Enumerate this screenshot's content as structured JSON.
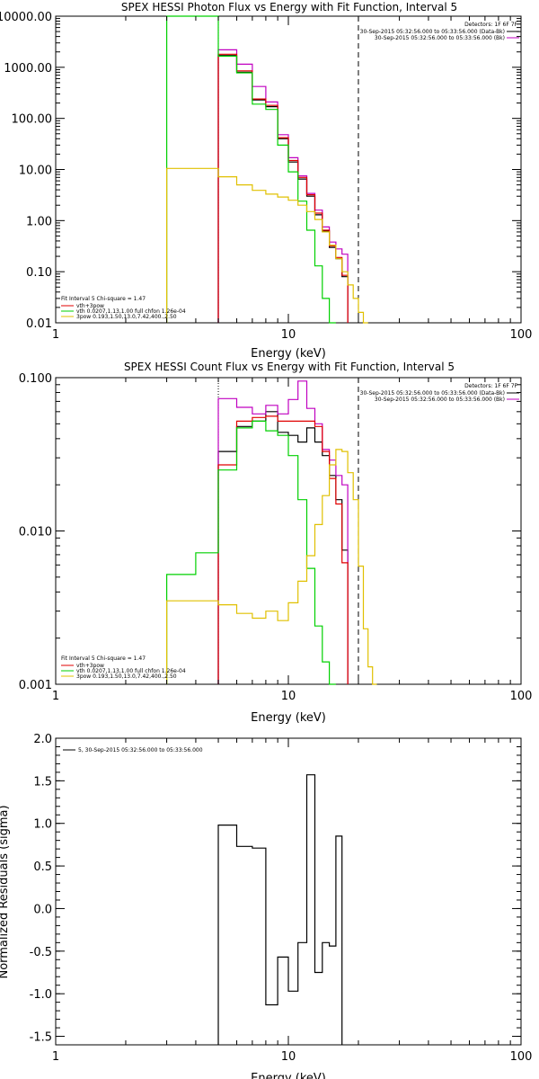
{
  "colors": {
    "black": "#000000",
    "red": "#e00000",
    "green": "#00d000",
    "purple": "#c000c0",
    "yellow": "#e0c000"
  },
  "chart_data": [
    {
      "type": "line",
      "step": true,
      "title": "SPEX HESSI Photon Flux vs Energy with Fit Function, Interval 5",
      "xlabel": "Energy (keV)",
      "ylabel": "",
      "xscale": "log",
      "yscale": "log",
      "xlim": [
        1,
        100
      ],
      "ylim": [
        0.01,
        10000
      ],
      "xticks": [
        {
          "v": 1,
          "label": "1"
        },
        {
          "v": 10,
          "label": "10"
        },
        {
          "v": 100,
          "label": "100"
        }
      ],
      "yticks": [
        {
          "v": 10000,
          "label": "10000.00"
        },
        {
          "v": 1000,
          "label": "1000.00"
        },
        {
          "v": 100,
          "label": "100.00"
        },
        {
          "v": 10,
          "label": "10.00"
        },
        {
          "v": 1,
          "label": "1.00"
        },
        {
          "v": 0.1,
          "label": "0.10"
        },
        {
          "v": 0.01,
          "label": "0.01"
        }
      ],
      "ytick_clip": [
        10000
      ],
      "info_text": [
        "Detectors: 1F 6F 7F",
        "30-Sep-2015 05:32:56.000 to 05:33:56.000 (Data-Bk)",
        "30-Sep-2015 05:32:56.000 to 05:33:56.000 (Bk)"
      ],
      "fit_text": [
        "Fit Interval 5   Chi-square = 1.47",
        "vth+3pow",
        "vth 0.0207,1.13,1.00  full chfon 1.26e-04",
        "3pow 0.193,1.50,13.0,7.42,400.,2.50"
      ],
      "vlines": [
        {
          "x": 5,
          "style": "dotted"
        },
        {
          "x": 20,
          "style": "dashed"
        }
      ],
      "edges": [
        3,
        4,
        5,
        6,
        7,
        8,
        9,
        10,
        11,
        12,
        13,
        14,
        15,
        16,
        17,
        18,
        19,
        20,
        21,
        22,
        23,
        24,
        25,
        26
      ],
      "series": [
        {
          "color_key": "black",
          "start": 2,
          "values": [
            1700,
            800,
            230,
            170,
            40,
            14,
            6.5,
            3.0,
            1.3,
            0.62,
            0.3,
            0.18,
            0.08
          ]
        },
        {
          "color_key": "purple",
          "start": 2,
          "values": [
            2200,
            1150,
            420,
            210,
            48,
            17,
            7.5,
            3.4,
            1.6,
            0.75,
            0.38,
            0.28,
            0.22
          ]
        },
        {
          "color_key": "red",
          "start": 2,
          "values": [
            1800,
            850,
            240,
            180,
            42,
            15,
            7.0,
            3.2,
            1.4,
            0.65,
            0.32,
            0.19,
            0.085
          ]
        },
        {
          "color_key": "green",
          "start": 0,
          "values": [
            10000,
            10000,
            1650,
            780,
            190,
            150,
            30,
            9.0,
            2.4,
            0.65,
            0.13,
            0.03,
            0.006
          ]
        },
        {
          "color_key": "yellow",
          "start": 0,
          "values": [
            10.5,
            10.5,
            7.2,
            5.0,
            3.9,
            3.3,
            2.9,
            2.5,
            2.0,
            1.5,
            1.05,
            0.6,
            0.33,
            0.18,
            0.1,
            0.055,
            0.03,
            0.016,
            0.01
          ]
        }
      ]
    },
    {
      "type": "line",
      "step": true,
      "title": "SPEX HESSI Count Flux vs Energy with Fit Function, Interval 5",
      "xlabel": "Energy (keV)",
      "ylabel": "",
      "xscale": "log",
      "yscale": "log",
      "xlim": [
        1,
        100
      ],
      "ylim": [
        0.001,
        0.1
      ],
      "xticks": [
        {
          "v": 1,
          "label": "1"
        },
        {
          "v": 10,
          "label": "10"
        },
        {
          "v": 100,
          "label": "100"
        }
      ],
      "yticks": [
        {
          "v": 0.1,
          "label": "0.100"
        },
        {
          "v": 0.01,
          "label": "0.010"
        },
        {
          "v": 0.001,
          "label": "0.001"
        }
      ],
      "ytick_clip": [],
      "info_text": [
        "Detectors: 1F 6F 7F",
        "30-Sep-2015 05:32:56.000 to 05:33:56.000 (Data-Bk)",
        "30-Sep-2015 05:32:56.000 to 05:33:56.000 (Bk)"
      ],
      "fit_text": [
        "Fit Interval 5   Chi-square = 1.47",
        "vth+3pow",
        "vth 0.0207,1.13,1.00  full chfon 1.26e-04",
        "3pow 0.193,1.50,13.0,7.42,400.,2.50"
      ],
      "vlines": [
        {
          "x": 5,
          "style": "dotted"
        },
        {
          "x": 20,
          "style": "dashed"
        }
      ],
      "edges": [
        3,
        4,
        5,
        6,
        7,
        8,
        9,
        10,
        11,
        12,
        13,
        14,
        15,
        16,
        17,
        18,
        19,
        20,
        21,
        22,
        23,
        24,
        25,
        26
      ],
      "series": [
        {
          "color_key": "black",
          "start": 2,
          "values": [
            0.033,
            0.048,
            0.052,
            0.06,
            0.044,
            0.042,
            0.038,
            0.047,
            0.038,
            0.031,
            0.023,
            0.016,
            0.0075
          ]
        },
        {
          "color_key": "purple",
          "start": 2,
          "values": [
            0.073,
            0.064,
            0.058,
            0.066,
            0.058,
            0.072,
            0.095,
            0.063,
            0.05,
            0.034,
            0.029,
            0.023,
            0.02
          ]
        },
        {
          "color_key": "red",
          "start": 2,
          "values": [
            0.027,
            0.052,
            0.055,
            0.056,
            0.052,
            0.052,
            0.052,
            0.052,
            0.048,
            0.033,
            0.022,
            0.015,
            0.0062
          ]
        },
        {
          "color_key": "green",
          "start": 0,
          "values": [
            0.0052,
            0.0072,
            0.025,
            0.047,
            0.052,
            0.045,
            0.042,
            0.031,
            0.016,
            0.0057,
            0.0024,
            0.0014,
            0.0009
          ]
        },
        {
          "color_key": "yellow",
          "start": 0,
          "values": [
            0.0035,
            0.0035,
            0.0033,
            0.0029,
            0.0027,
            0.003,
            0.0026,
            0.0034,
            0.0047,
            0.0069,
            0.011,
            0.017,
            0.027,
            0.034,
            0.033,
            0.024,
            0.016,
            0.0059,
            0.0023,
            0.0013,
            0.0009
          ]
        }
      ]
    },
    {
      "type": "line",
      "step": true,
      "title": "",
      "xlabel": "Energy (keV)",
      "ylabel": "Normalized Residuals (sigma)",
      "xscale": "log",
      "yscale": "linear",
      "xlim": [
        1,
        100
      ],
      "ylim": [
        -1.6,
        2.0
      ],
      "xticks": [
        {
          "v": 1,
          "label": "1"
        },
        {
          "v": 10,
          "label": "10"
        },
        {
          "v": 100,
          "label": "100"
        }
      ],
      "yticks": [
        {
          "v": 2.0,
          "label": "2.0"
        },
        {
          "v": 1.5,
          "label": "1.5"
        },
        {
          "v": 1.0,
          "label": "1.0"
        },
        {
          "v": 0.5,
          "label": "0.5"
        },
        {
          "v": 0.0,
          "label": "0.0"
        },
        {
          "v": -0.5,
          "label": "-0.5"
        },
        {
          "v": -1.0,
          "label": "-1.0"
        },
        {
          "v": -1.5,
          "label": "-1.5"
        }
      ],
      "ytick_clip": [],
      "legend": [
        {
          "color_key": "black",
          "label": "5, 30-Sep-2015 05:32:56.000 to 05:33:56.000"
        }
      ],
      "edges": [
        5,
        6,
        7,
        8,
        9,
        10,
        11,
        12,
        13,
        14,
        15,
        16,
        17,
        18,
        19,
        20
      ],
      "series": [
        {
          "color_key": "black",
          "start": 0,
          "values": [
            0.98,
            0.73,
            0.71,
            -1.13,
            -0.57,
            -0.97,
            -0.4,
            1.57,
            -0.75,
            -0.4,
            -0.44,
            0.85
          ]
        }
      ]
    }
  ]
}
